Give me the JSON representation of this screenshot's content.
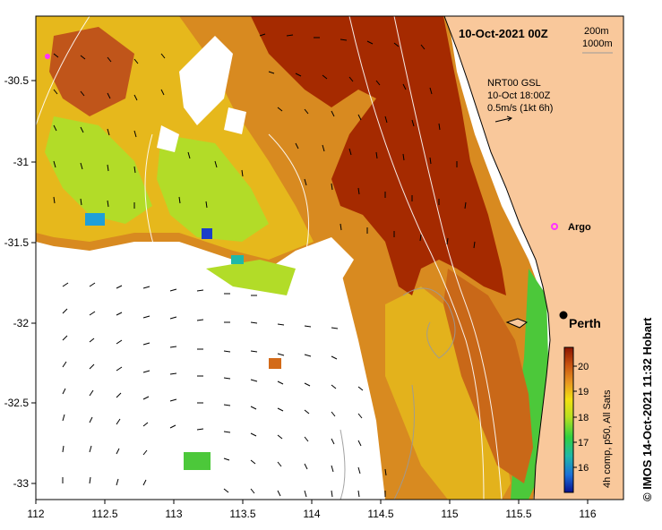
{
  "map": {
    "date_title": "10-Oct-2021 00Z",
    "scale_top": "200m",
    "scale_bottom": "1000m",
    "current_source": "NRT00 GSL",
    "current_time": "10-Oct 18:00Z",
    "current_scale": "0.5m/s (1kt 6h)",
    "argo_label": "Argo",
    "city_label": "Perth",
    "credit": "© IMOS 14-Oct-2021 11:32 Hobart",
    "colorbar_label": "4h comp, p50, All Sats",
    "colorbar_ticks": [
      "16",
      "17",
      "18",
      "19",
      "20"
    ],
    "x_ticks": [
      "112",
      "112.5",
      "113",
      "113.5",
      "114",
      "114.5",
      "115",
      "115.5",
      "116"
    ],
    "y_ticks": [
      "-30.5",
      "-31",
      "-31.5",
      "-32",
      "-32.5",
      "-33"
    ],
    "colors": {
      "land": "#f9c89b",
      "sst_hot": "#9e1a00",
      "sst_warm": "#cf6b1a",
      "sst_mid": "#e8b21a",
      "sst_green": "#9fd82a",
      "sst_cool": "#1f9fd8",
      "argo": "#ff33ff"
    }
  }
}
